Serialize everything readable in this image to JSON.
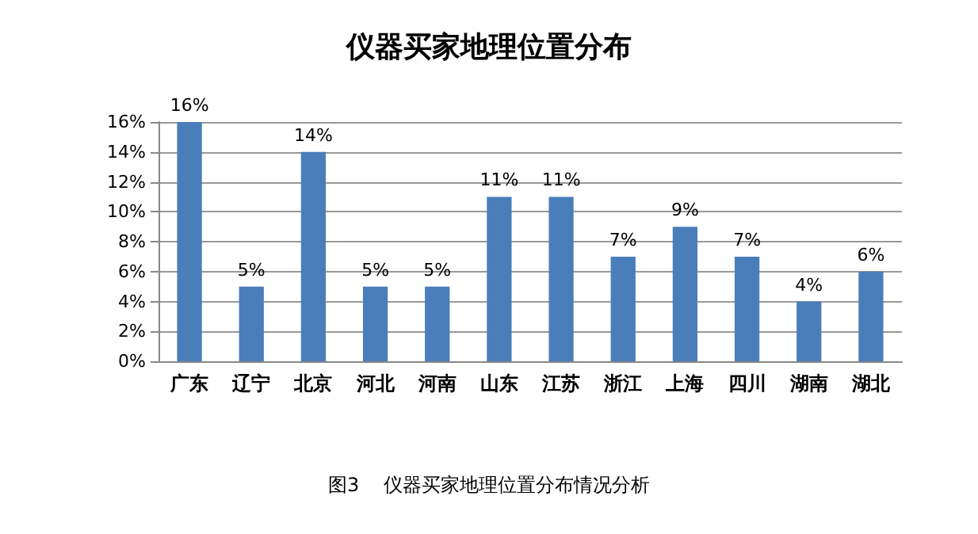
{
  "chart_data": {
    "type": "bar",
    "title": "仪器买家地理位置分布",
    "categories": [
      "广东",
      "辽宁",
      "北京",
      "河北",
      "河南",
      "山东",
      "江苏",
      "浙江",
      "上海",
      "四川",
      "湖南",
      "湖北"
    ],
    "values": [
      16,
      5,
      14,
      5,
      5,
      11,
      11,
      7,
      9,
      7,
      4,
      6
    ],
    "value_labels": [
      "16%",
      "5%",
      "14%",
      "5%",
      "5%",
      "11%",
      "11%",
      "7%",
      "9%",
      "7%",
      "4%",
      "6%"
    ],
    "color": "#4a7ebb",
    "ylim": [
      0,
      16
    ],
    "yticks": [
      {
        "value": 0,
        "label": "0%"
      },
      {
        "value": 2,
        "label": "2%"
      },
      {
        "value": 4,
        "label": "4%"
      },
      {
        "value": 6,
        "label": "6%"
      },
      {
        "value": 8,
        "label": "8%"
      },
      {
        "value": 10,
        "label": "10%"
      },
      {
        "value": 12,
        "label": "12%"
      },
      {
        "value": 14,
        "label": "14%"
      },
      {
        "value": 16,
        "label": "16%"
      }
    ],
    "grid": true,
    "annotations": [
      "图3    仪器买家地理位置分布情况分析"
    ]
  }
}
